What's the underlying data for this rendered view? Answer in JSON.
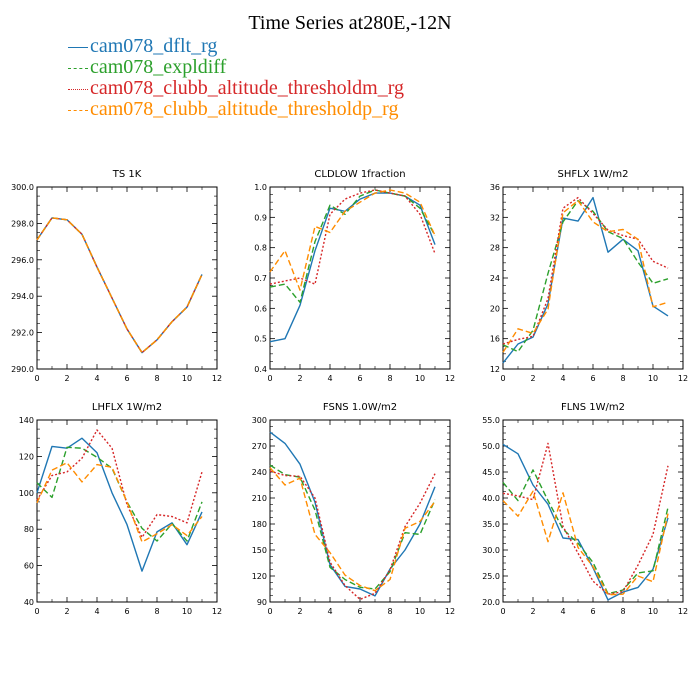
{
  "figure_title": "Time Series at280E,-12N",
  "legend": [
    {
      "label": "cam078_dflt_rg",
      "color": "#1f77b4",
      "dash": "none"
    },
    {
      "label": "cam078_expldiff",
      "color": "#2ca02c",
      "dash": "dash"
    },
    {
      "label": "cam078_clubb_altitude_thresholdm_rg",
      "color": "#d62728",
      "dash": "dot"
    },
    {
      "label": "cam078_clubb_altitude_thresholdp_rg",
      "color": "#ff8c00",
      "dash": "dash"
    }
  ],
  "chart_data": [
    {
      "type": "line",
      "title": "TS   1K",
      "xlim": [
        0,
        12
      ],
      "ylim": [
        290.0,
        300.0
      ],
      "xticks": [
        0,
        2,
        4,
        6,
        8,
        10,
        12
      ],
      "yticks": [
        290.0,
        292.0,
        294.0,
        296.0,
        298.0,
        300.0
      ],
      "ytick_labels": [
        "290.0",
        "292.0",
        "294.0",
        "296.0",
        "298.0",
        "300.0"
      ],
      "x": [
        0,
        1,
        2,
        3,
        4,
        5,
        6,
        7,
        8,
        9,
        10,
        11
      ],
      "series": [
        {
          "name": "cam078_dflt_rg",
          "values": [
            297.1,
            298.3,
            298.2,
            297.4,
            295.6,
            293.9,
            292.2,
            290.9,
            291.6,
            292.6,
            293.4,
            295.2
          ]
        },
        {
          "name": "cam078_expldiff",
          "values": [
            297.1,
            298.3,
            298.2,
            297.4,
            295.6,
            293.9,
            292.2,
            290.9,
            291.6,
            292.6,
            293.4,
            295.2
          ]
        },
        {
          "name": "cam078_clubb_altitude_thresholdm_rg",
          "values": [
            297.1,
            298.3,
            298.2,
            297.4,
            295.6,
            293.9,
            292.2,
            290.9,
            291.6,
            292.6,
            293.4,
            295.2
          ]
        },
        {
          "name": "cam078_clubb_altitude_thresholdp_rg",
          "values": [
            297.1,
            298.3,
            298.2,
            297.4,
            295.6,
            293.9,
            292.2,
            290.9,
            291.6,
            292.6,
            293.4,
            295.2
          ]
        }
      ]
    },
    {
      "type": "line",
      "title": "CLDLOW   1fraction",
      "xlim": [
        0,
        12
      ],
      "ylim": [
        0.4,
        1.0
      ],
      "xticks": [
        0,
        2,
        4,
        6,
        8,
        10,
        12
      ],
      "yticks": [
        0.4,
        0.5,
        0.6,
        0.7,
        0.8,
        0.9,
        1.0
      ],
      "ytick_labels": [
        "0.4",
        "0.5",
        "0.6",
        "0.7",
        "0.8",
        "0.9",
        "1.0"
      ],
      "x": [
        0,
        1,
        2,
        3,
        4,
        5,
        6,
        7,
        8,
        9,
        10,
        11
      ],
      "series": [
        {
          "name": "cam078_dflt_rg",
          "values": [
            0.49,
            0.5,
            0.61,
            0.79,
            0.93,
            0.92,
            0.96,
            0.98,
            0.98,
            0.97,
            0.94,
            0.81
          ]
        },
        {
          "name": "cam078_expldiff",
          "values": [
            0.67,
            0.68,
            0.62,
            0.82,
            0.94,
            0.91,
            0.97,
            0.99,
            0.98,
            0.97,
            0.93,
            0.84
          ]
        },
        {
          "name": "cam078_clubb_altitude_thresholdm_rg",
          "values": [
            0.68,
            0.69,
            0.7,
            0.68,
            0.91,
            0.96,
            0.98,
            0.99,
            0.98,
            0.97,
            0.91,
            0.78
          ]
        },
        {
          "name": "cam078_clubb_altitude_thresholdp_rg",
          "values": [
            0.72,
            0.79,
            0.66,
            0.87,
            0.85,
            0.92,
            0.95,
            0.98,
            0.99,
            0.98,
            0.95,
            0.84
          ]
        }
      ]
    },
    {
      "type": "line",
      "title": "SHFLX   1W/m2",
      "xlim": [
        0,
        12
      ],
      "ylim": [
        12,
        36
      ],
      "xticks": [
        0,
        2,
        4,
        6,
        8,
        10,
        12
      ],
      "yticks": [
        12,
        16,
        20,
        24,
        28,
        32,
        36
      ],
      "ytick_labels": [
        "12",
        "16",
        "20",
        "24",
        "28",
        "32",
        "36"
      ],
      "x": [
        0,
        1,
        2,
        3,
        4,
        5,
        6,
        7,
        8,
        9,
        10,
        11
      ],
      "series": [
        {
          "name": "cam078_dflt_rg",
          "values": [
            12.8,
            15.3,
            16.2,
            20.6,
            31.9,
            31.5,
            34.6,
            27.4,
            29.1,
            27.6,
            20.3,
            19.0
          ]
        },
        {
          "name": "cam078_expldiff",
          "values": [
            15.2,
            14.3,
            17.1,
            24.6,
            31.4,
            34.2,
            32.8,
            30.1,
            29.2,
            26.1,
            23.3,
            23.9
          ]
        },
        {
          "name": "cam078_clubb_altitude_thresholdm_rg",
          "values": [
            15.3,
            15.9,
            16.3,
            21.3,
            33.2,
            34.6,
            32.5,
            30.3,
            29.6,
            29.1,
            26.2,
            25.3
          ]
        },
        {
          "name": "cam078_clubb_altitude_thresholdp_rg",
          "values": [
            14.2,
            17.3,
            16.7,
            19.9,
            32.6,
            34.2,
            31.4,
            30.1,
            30.4,
            29.1,
            20.2,
            20.8
          ]
        }
      ]
    },
    {
      "type": "line",
      "title": "LHFLX   1W/m2",
      "xlim": [
        0,
        12
      ],
      "ylim": [
        40,
        140
      ],
      "xticks": [
        0,
        2,
        4,
        6,
        8,
        10,
        12
      ],
      "yticks": [
        40,
        60,
        80,
        100,
        120,
        140
      ],
      "ytick_labels": [
        "40",
        "60",
        "80",
        "100",
        "120",
        "140"
      ],
      "x": [
        0,
        1,
        2,
        3,
        4,
        5,
        6,
        7,
        8,
        9,
        10,
        11
      ],
      "series": [
        {
          "name": "cam078_dflt_rg",
          "values": [
            100.0,
            125.5,
            124.5,
            130.0,
            122.0,
            100.0,
            82.5,
            57.0,
            78.5,
            83.5,
            71.5,
            89.5
          ]
        },
        {
          "name": "cam078_expldiff",
          "values": [
            105.5,
            97.5,
            125.0,
            124.5,
            119.5,
            113.5,
            95.0,
            80.5,
            73.5,
            83.0,
            73.5,
            95.0
          ]
        },
        {
          "name": "cam078_clubb_altitude_thresholdm_rg",
          "values": [
            96.0,
            109.5,
            111.5,
            119.0,
            134.5,
            124.5,
            93.5,
            75.5,
            88.0,
            87.0,
            83.5,
            111.5
          ]
        },
        {
          "name": "cam078_clubb_altitude_thresholdp_rg",
          "values": [
            94.5,
            112.5,
            116.5,
            106.0,
            115.5,
            114.0,
            95.0,
            73.0,
            77.5,
            82.5,
            76.5,
            87.0
          ]
        }
      ]
    },
    {
      "type": "line",
      "title": "FSNS   1.0W/m2",
      "xlim": [
        0,
        12
      ],
      "ylim": [
        90,
        300
      ],
      "xticks": [
        0,
        2,
        4,
        6,
        8,
        10,
        12
      ],
      "yticks": [
        90,
        120,
        150,
        180,
        210,
        240,
        270,
        300
      ],
      "ytick_labels": [
        "90",
        "120",
        "150",
        "180",
        "210",
        "240",
        "270",
        "300"
      ],
      "x": [
        0,
        1,
        2,
        3,
        4,
        5,
        6,
        7,
        8,
        9,
        10,
        11
      ],
      "series": [
        {
          "name": "cam078_dflt_rg",
          "values": [
            286.0,
            273.0,
            249.0,
            205.0,
            133.0,
            108.0,
            105.0,
            97.0,
            128.0,
            150.0,
            180.0,
            223.0
          ]
        },
        {
          "name": "cam078_expldiff",
          "values": [
            248.0,
            237.0,
            234.0,
            196.0,
            130.0,
            116.0,
            107.0,
            105.0,
            125.0,
            170.0,
            168.0,
            208.0
          ]
        },
        {
          "name": "cam078_clubb_altitude_thresholdm_rg",
          "values": [
            241.0,
            236.0,
            235.0,
            210.0,
            136.0,
            109.0,
            93.0,
            100.0,
            127.0,
            177.0,
            204.0,
            238.0
          ]
        },
        {
          "name": "cam078_clubb_altitude_thresholdp_rg",
          "values": [
            245.0,
            225.0,
            233.0,
            168.0,
            147.0,
            121.0,
            109.0,
            103.0,
            116.0,
            175.0,
            183.0,
            206.0
          ]
        }
      ]
    },
    {
      "type": "line",
      "title": "FLNS   1W/m2",
      "xlim": [
        0,
        12
      ],
      "ylim": [
        20.0,
        55.0
      ],
      "xticks": [
        0,
        2,
        4,
        6,
        8,
        10,
        12
      ],
      "yticks": [
        20.0,
        25.0,
        30.0,
        35.0,
        40.0,
        45.0,
        50.0,
        55.0
      ],
      "ytick_labels": [
        "20.0",
        "25.0",
        "30.0",
        "35.0",
        "40.0",
        "45.0",
        "50.0",
        "55.0"
      ],
      "x": [
        0,
        1,
        2,
        3,
        4,
        5,
        6,
        7,
        8,
        9,
        10,
        11
      ],
      "series": [
        {
          "name": "cam078_dflt_rg",
          "values": [
            50.3,
            48.5,
            42.5,
            38.8,
            32.3,
            32.0,
            26.6,
            20.4,
            21.9,
            22.8,
            26.3,
            36.2
          ]
        },
        {
          "name": "cam078_expldiff",
          "values": [
            43.0,
            39.5,
            45.4,
            39.5,
            34.0,
            31.3,
            27.6,
            21.6,
            22.3,
            25.6,
            26.0,
            38.2
          ]
        },
        {
          "name": "cam078_clubb_altitude_thresholdm_rg",
          "values": [
            40.9,
            40.4,
            39.7,
            50.5,
            34.5,
            29.4,
            24.0,
            21.5,
            22.0,
            27.1,
            33.0,
            46.2
          ]
        },
        {
          "name": "cam078_clubb_altitude_thresholdp_rg",
          "values": [
            39.5,
            36.5,
            41.3,
            31.6,
            41.0,
            30.5,
            26.8,
            21.4,
            21.5,
            25.0,
            23.9,
            37.0
          ]
        }
      ]
    }
  ]
}
